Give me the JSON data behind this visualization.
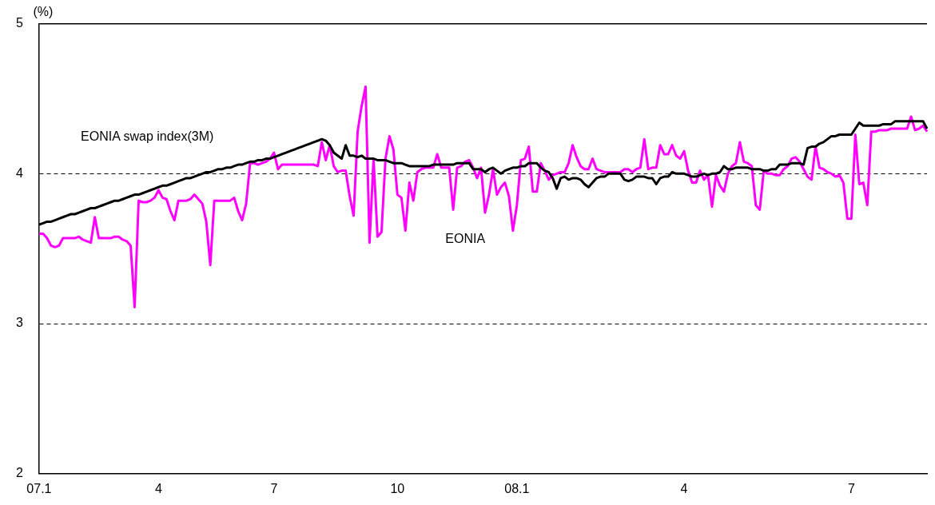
{
  "chart_data": {
    "type": "line",
    "ylabel": "(%)",
    "ylim": [
      2,
      5
    ],
    "yticks": [
      2,
      3,
      4,
      5
    ],
    "grid": "y",
    "legend": false,
    "marker": "none",
    "line_style": "solid",
    "categories": [
      "07.1",
      null,
      null,
      null,
      null,
      null,
      null,
      null,
      null,
      null,
      null,
      null,
      null,
      null,
      null,
      null,
      null,
      null,
      null,
      null,
      null,
      null,
      null,
      null,
      null,
      null,
      null,
      null,
      null,
      null,
      "4",
      null,
      null,
      null,
      null,
      null,
      null,
      null,
      null,
      null,
      null,
      null,
      null,
      null,
      null,
      null,
      null,
      null,
      null,
      null,
      null,
      null,
      null,
      null,
      null,
      null,
      null,
      null,
      null,
      "7",
      null,
      null,
      null,
      null,
      null,
      null,
      null,
      null,
      null,
      null,
      null,
      null,
      null,
      null,
      null,
      null,
      null,
      null,
      null,
      null,
      null,
      null,
      null,
      null,
      null,
      null,
      null,
      null,
      null,
      null,
      "10",
      null,
      null,
      null,
      null,
      null,
      null,
      null,
      null,
      null,
      null,
      null,
      null,
      null,
      null,
      null,
      null,
      null,
      null,
      null,
      null,
      null,
      null,
      null,
      null,
      null,
      null,
      null,
      null,
      null,
      "08.1",
      null,
      null,
      null,
      null,
      null,
      null,
      null,
      null,
      null,
      null,
      null,
      null,
      null,
      null,
      null,
      null,
      null,
      null,
      null,
      null,
      null,
      null,
      null,
      null,
      null,
      null,
      null,
      null,
      null,
      null,
      null,
      null,
      null,
      null,
      null,
      null,
      null,
      null,
      null,
      null,
      null,
      "4",
      null,
      null,
      null,
      null,
      null,
      null,
      null,
      null,
      null,
      null,
      null,
      null,
      null,
      null,
      null,
      null,
      null,
      null,
      null,
      null,
      null,
      null,
      null,
      null,
      null,
      null,
      null,
      null,
      null,
      null,
      null,
      null,
      null,
      null,
      null,
      null,
      null,
      null,
      null,
      null,
      null,
      "7",
      null,
      null,
      null,
      null,
      null,
      null,
      null,
      null,
      null,
      null,
      null,
      null,
      null,
      null,
      null,
      null,
      null,
      null,
      null
    ],
    "series": [
      {
        "name": "EONIA swap index(3M)",
        "color": "#000000",
        "values": [
          3.66,
          3.67,
          3.68,
          3.68,
          3.69,
          3.7,
          3.71,
          3.72,
          3.73,
          3.73,
          3.74,
          3.75,
          3.76,
          3.77,
          3.77,
          3.78,
          3.79,
          3.8,
          3.81,
          3.82,
          3.82,
          3.83,
          3.84,
          3.85,
          3.86,
          3.86,
          3.87,
          3.88,
          3.89,
          3.9,
          3.91,
          3.92,
          3.92,
          3.93,
          3.94,
          3.95,
          3.96,
          3.97,
          3.97,
          3.98,
          3.99,
          4.0,
          4.01,
          4.01,
          4.02,
          4.03,
          4.03,
          4.04,
          4.04,
          4.05,
          4.06,
          4.06,
          4.07,
          4.08,
          4.08,
          4.09,
          4.09,
          4.1,
          4.1,
          4.11,
          4.12,
          4.13,
          4.14,
          4.15,
          4.16,
          4.17,
          4.18,
          4.19,
          4.2,
          4.21,
          4.22,
          4.23,
          4.22,
          4.19,
          4.14,
          4.12,
          4.1,
          4.19,
          4.12,
          4.12,
          4.11,
          4.12,
          4.1,
          4.1,
          4.1,
          4.09,
          4.09,
          4.09,
          4.08,
          4.07,
          4.07,
          4.07,
          4.06,
          4.05,
          4.05,
          4.05,
          4.05,
          4.05,
          4.05,
          4.06,
          4.06,
          4.06,
          4.06,
          4.06,
          4.06,
          4.07,
          4.07,
          4.07,
          4.07,
          4.03,
          4.03,
          4.03,
          4.01,
          4.03,
          4.04,
          4.02,
          4.0,
          4.02,
          4.03,
          4.04,
          4.04,
          4.05,
          4.05,
          4.07,
          4.07,
          4.07,
          4.04,
          4.02,
          4.01,
          3.97,
          3.9,
          3.97,
          3.98,
          3.96,
          3.97,
          3.97,
          3.96,
          3.93,
          3.91,
          3.94,
          3.97,
          3.98,
          3.98,
          4.0,
          4.0,
          4.0,
          4.0,
          3.96,
          3.95,
          3.96,
          3.98,
          3.98,
          3.98,
          3.97,
          3.97,
          3.93,
          3.97,
          3.98,
          3.98,
          4.01,
          4.0,
          4.0,
          4.0,
          3.99,
          3.98,
          3.98,
          3.99,
          4.0,
          3.99,
          4.0,
          4.0,
          4.01,
          4.05,
          4.03,
          4.03,
          4.04,
          4.04,
          4.04,
          4.04,
          4.03,
          4.03,
          4.03,
          4.02,
          4.02,
          4.03,
          4.03,
          4.06,
          4.06,
          4.06,
          4.07,
          4.07,
          4.07,
          4.06,
          4.17,
          4.18,
          4.18,
          4.2,
          4.21,
          4.23,
          4.25,
          4.25,
          4.26,
          4.26,
          4.26,
          4.26,
          4.3,
          4.34,
          4.32,
          4.32,
          4.32,
          4.32,
          4.32,
          4.33,
          4.33,
          4.33,
          4.35,
          4.35,
          4.35,
          4.35,
          4.35,
          4.35,
          4.35,
          4.35,
          4.3
        ]
      },
      {
        "name": "EONIA",
        "color": "#ff00ff",
        "values": [
          3.6,
          3.6,
          3.57,
          3.52,
          3.51,
          3.52,
          3.57,
          3.57,
          3.57,
          3.57,
          3.58,
          3.56,
          3.55,
          3.54,
          3.71,
          3.57,
          3.57,
          3.57,
          3.57,
          3.58,
          3.58,
          3.56,
          3.55,
          3.52,
          3.11,
          3.82,
          3.81,
          3.81,
          3.82,
          3.84,
          3.89,
          3.84,
          3.83,
          3.75,
          3.69,
          3.82,
          3.82,
          3.82,
          3.83,
          3.86,
          3.83,
          3.8,
          3.68,
          3.39,
          3.82,
          3.82,
          3.82,
          3.82,
          3.82,
          3.84,
          3.75,
          3.69,
          3.8,
          4.07,
          4.07,
          4.06,
          4.07,
          4.08,
          4.1,
          4.14,
          4.03,
          4.06,
          4.06,
          4.06,
          4.06,
          4.06,
          4.06,
          4.06,
          4.06,
          4.06,
          4.05,
          4.21,
          4.09,
          4.19,
          4.05,
          4.01,
          4.02,
          4.02,
          3.85,
          3.72,
          4.28,
          4.45,
          4.58,
          3.54,
          4.1,
          3.58,
          3.61,
          4.1,
          4.25,
          4.16,
          3.86,
          3.84,
          3.62,
          3.94,
          3.82,
          4.01,
          4.03,
          4.04,
          4.04,
          4.04,
          4.13,
          4.04,
          4.04,
          4.04,
          3.76,
          4.04,
          4.05,
          4.08,
          4.09,
          4.04,
          3.97,
          4.04,
          3.74,
          3.86,
          4.03,
          3.86,
          3.91,
          3.94,
          3.85,
          3.62,
          3.79,
          4.09,
          4.1,
          4.18,
          3.88,
          3.88,
          4.07,
          4.02,
          3.96,
          3.99,
          4.0,
          4.01,
          4.01,
          4.07,
          4.19,
          4.11,
          4.05,
          4.03,
          4.03,
          4.1,
          4.03,
          4.02,
          4.01,
          4.01,
          4.01,
          4.01,
          4.01,
          4.03,
          4.03,
          4.01,
          4.03,
          4.04,
          4.23,
          4.03,
          4.04,
          4.04,
          4.19,
          4.13,
          4.13,
          4.19,
          4.12,
          4.1,
          4.15,
          4.02,
          3.94,
          3.94,
          4.02,
          3.96,
          3.99,
          3.78,
          3.99,
          3.92,
          3.88,
          4.0,
          4.05,
          4.07,
          4.21,
          4.08,
          4.07,
          4.05,
          3.79,
          3.76,
          4.02,
          4.0,
          4.0,
          3.99,
          3.99,
          4.03,
          4.05,
          4.1,
          4.11,
          4.08,
          4.03,
          3.98,
          3.96,
          4.18,
          4.04,
          4.03,
          4.01,
          4.0,
          3.98,
          3.99,
          3.94,
          3.7,
          3.7,
          4.26,
          3.93,
          3.94,
          3.79,
          4.28,
          4.28,
          4.29,
          4.29,
          4.29,
          4.3,
          4.3,
          4.3,
          4.3,
          4.3,
          4.38,
          4.29,
          4.3,
          4.32,
          4.28
        ]
      }
    ]
  }
}
